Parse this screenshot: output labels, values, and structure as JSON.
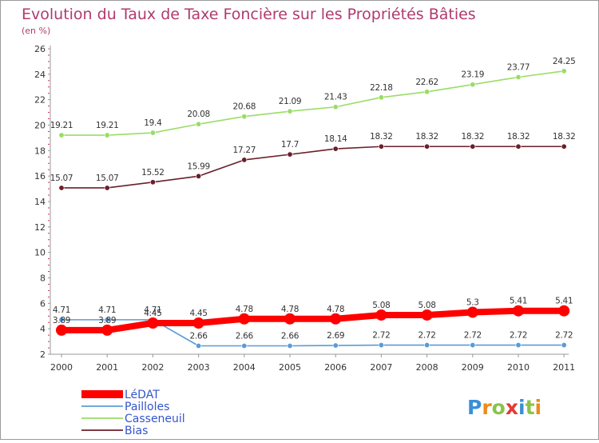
{
  "header": {
    "title": "Evolution du Taux de Taxe Foncière sur les Propriétés Bâties",
    "unit": "(en %)"
  },
  "logo": {
    "text": "Proxiti"
  },
  "chart_data": {
    "type": "line",
    "title": "Evolution du Taux de Taxe Foncière sur les Propriétés Bâties",
    "ylabel": "(en %)",
    "xlabel": "",
    "ylim": [
      2,
      26
    ],
    "yticks": [
      2,
      4,
      6,
      8,
      10,
      12,
      14,
      16,
      18,
      20,
      22,
      24,
      26
    ],
    "grid": false,
    "legend_position": "bottom-left",
    "categories": [
      "2000",
      "2001",
      "2002",
      "2003",
      "2004",
      "2005",
      "2006",
      "2007",
      "2008",
      "2009",
      "2010",
      "2011"
    ],
    "series": [
      {
        "name": "LéDAT",
        "color": "#ff0000",
        "values": [
          3.89,
          3.89,
          4.45,
          4.45,
          4.78,
          4.78,
          4.78,
          5.08,
          5.08,
          5.3,
          5.41,
          5.41
        ],
        "labels": [
          "3.89",
          "3.89",
          "4.45",
          "4.45",
          "4.78",
          "4.78",
          "4.78",
          "5.08",
          "5.08",
          "5.3",
          "5.41",
          "5.41"
        ]
      },
      {
        "name": "Pailloles",
        "color": "#5b9bd5",
        "values": [
          4.71,
          4.71,
          4.71,
          2.66,
          2.66,
          2.66,
          2.69,
          2.72,
          2.72,
          2.72,
          2.72,
          2.72
        ],
        "labels": [
          "4.71",
          "4.71",
          "4.71",
          "2.66",
          "2.66",
          "2.66",
          "2.69",
          "2.72",
          "2.72",
          "2.72",
          "2.72",
          "2.72"
        ]
      },
      {
        "name": "Casseneuil",
        "color": "#99dd66",
        "values": [
          19.21,
          19.21,
          19.4,
          20.08,
          20.68,
          21.09,
          21.43,
          22.18,
          22.62,
          23.19,
          23.77,
          24.25
        ],
        "labels": [
          "19.21",
          "19.21",
          "19.4",
          "20.08",
          "20.68",
          "21.09",
          "21.43",
          "22.18",
          "22.62",
          "23.19",
          "23.77",
          "24.25"
        ]
      },
      {
        "name": "Bias",
        "color": "#6b1f2a",
        "values": [
          15.07,
          15.07,
          15.52,
          15.99,
          17.27,
          17.7,
          18.14,
          18.32,
          18.32,
          18.32,
          18.32,
          18.32
        ],
        "labels": [
          "15.07",
          "15.07",
          "15.52",
          "15.99",
          "17.27",
          "17.7",
          "18.14",
          "18.32",
          "18.32",
          "18.32",
          "18.32",
          "18.32"
        ]
      }
    ]
  }
}
